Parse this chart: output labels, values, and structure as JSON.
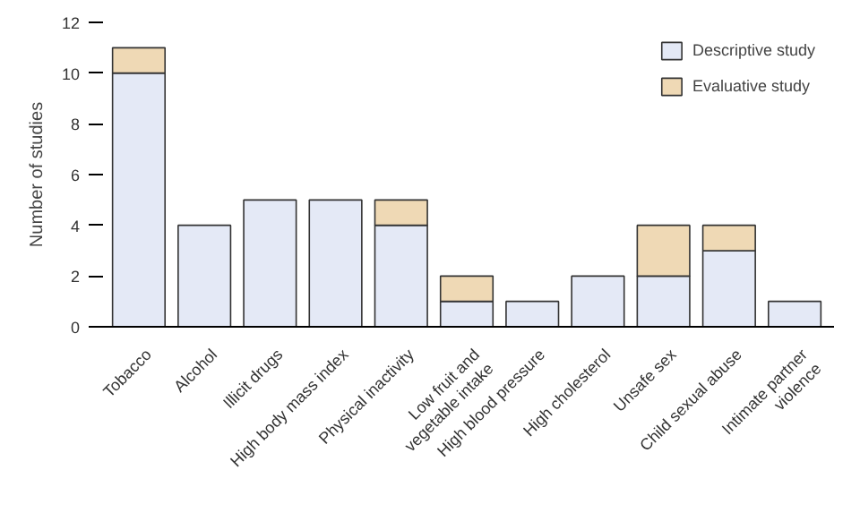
{
  "chart_data": {
    "type": "bar",
    "stacked": true,
    "ylabel": "Number of studies",
    "categories": [
      "Tobacco",
      "Alcohol",
      "Illicit drugs",
      "High body mass index",
      "Physical inactivity",
      "Low fruit and\nvegetable intake",
      "High blood pressure",
      "High cholesterol",
      "Unsafe sex",
      "Child sexual abuse",
      "Intimate partner\nviolence"
    ],
    "series": [
      {
        "name": "Descriptive study",
        "color": "#e4e9f6",
        "values": [
          10,
          4,
          5,
          5,
          4,
          1,
          1,
          2,
          2,
          3,
          1
        ]
      },
      {
        "name": "Evaluative study",
        "color": "#efd9b5",
        "values": [
          1,
          0,
          0,
          0,
          1,
          1,
          0,
          0,
          2,
          1,
          0
        ]
      }
    ],
    "ylim": [
      0,
      12
    ],
    "yticks": [
      0,
      2,
      4,
      6,
      8,
      10,
      12
    ],
    "grid": false,
    "legend": "top right"
  }
}
